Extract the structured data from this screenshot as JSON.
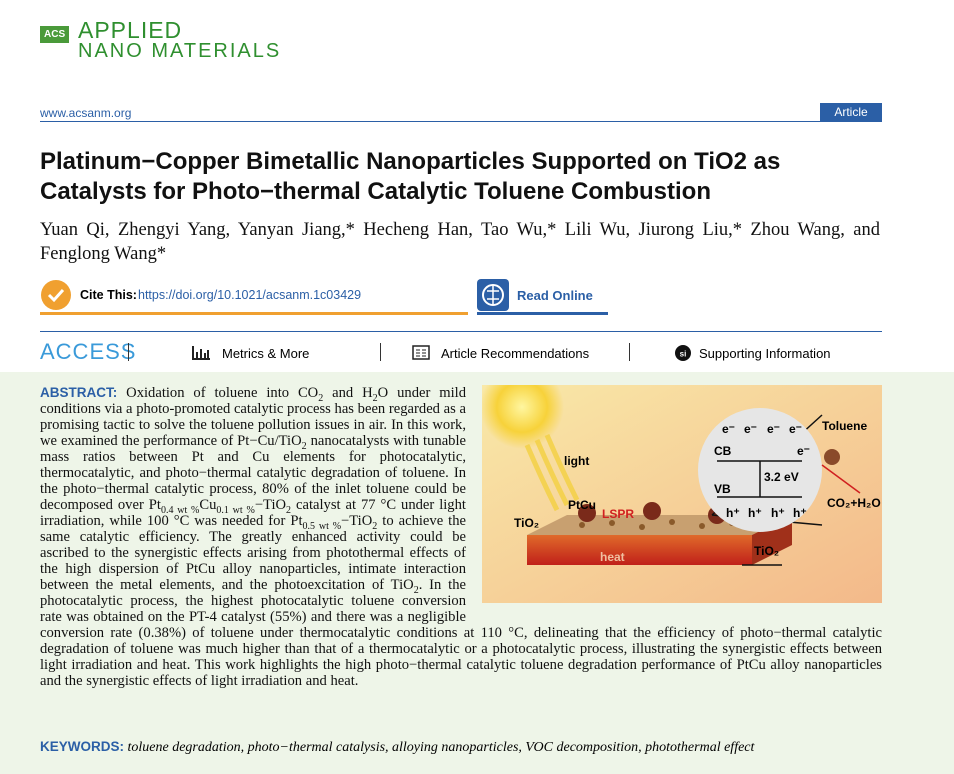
{
  "header": {
    "logo_small": "ACS",
    "logo_top": "APPLIED",
    "logo_bottom": "NANO MATERIALS",
    "url": "www.acsanm.org",
    "article_type": "Article"
  },
  "title": "Platinum−Copper Bimetallic Nanoparticles Supported on TiO2 as Catalysts for Photo−thermal Catalytic Toluene Combustion",
  "authors": "Yuan Qi, Zhengyi Yang, Yanyan Jiang,* Hecheng Han, Tao Wu,* Lili Wu, Jiurong Liu,* Zhou Wang, and Fenglong Wang*",
  "cite": {
    "label": "Cite This:",
    "doi": "https://doi.org/10.1021/acsanm.1c03429",
    "read_online": "Read Online"
  },
  "access": {
    "label": "ACCESS",
    "metrics": "Metrics & More",
    "recommendations": "Article Recommendations",
    "supporting": "Supporting Information"
  },
  "abstract": {
    "label": "ABSTRACT:",
    "parts": [
      "Oxidation of toluene into CO",
      {
        "sub": "2"
      },
      " and H",
      {
        "sub": "2"
      },
      "O under mild conditions via a photo-promoted catalytic process has been regarded as a promising tactic to solve the toluene pollution issues in air. In this work, we examined the performance of Pt−Cu/TiO",
      {
        "sub": "2"
      },
      " nanocatalysts with tunable mass ratios between Pt and Cu elements for photocatalytic, thermocatalytic, and photo−thermal catalytic degradation of toluene. In the photo−thermal catalytic process, 80% of the inlet toluene could be decomposed over Pt",
      {
        "sub": "0.4 wt %"
      },
      "Cu",
      {
        "sub": "0.1 wt %"
      },
      "−TiO",
      {
        "sub": "2"
      },
      " catalyst at 77 °C under light irradiation, while 100 °C was needed for Pt",
      {
        "sub": "0.5 wt %"
      },
      "−TiO",
      {
        "sub": "2"
      },
      " to achieve the same catalytic efficiency. The greatly enhanced activity could be ascribed to the synergistic effects arising from photothermal effects of the high dispersion of PtCu alloy nanoparticles, intimate interaction between the metal elements, and the photoexcitation of TiO",
      {
        "sub": "2"
      },
      ". In the photocatalytic process, the highest photocatalytic toluene conversion rate was obtained on the PT-4 catalyst (55%) and there was a negligible conversion rate (0.38%) of toluene under thermocatalytic conditions at 110 °C, delineating that the efficiency of photo−thermal catalytic degradation of toluene was much higher than that of a thermocatalytic or a photocatalytic process, illustrating the synergistic effects between light irradiation and heat. This work highlights the high photo−thermal catalytic toluene degradation performance of PtCu alloy nanoparticles and the synergistic effects of light irradiation and heat."
    ]
  },
  "figure": {
    "light": "light",
    "ptcu": "PtCu",
    "lspr": "LSPR",
    "tio2_left": "TiO₂",
    "heat": "heat",
    "tio2_right": "TiO₂",
    "electrons": [
      "e⁻",
      "e⁻",
      "e⁻",
      "e⁻"
    ],
    "cb": "CB",
    "cb_electron": "e⁻",
    "gap": "3.2 eV",
    "vb": "VB",
    "holes": [
      "h⁺",
      "h⁺",
      "h⁺",
      "h⁺"
    ],
    "toluene": "Toluene",
    "products": "CO₂+H₂O"
  },
  "keywords": {
    "label": "KEYWORDS:",
    "text": "toluene degradation, photo−thermal catalysis, alloying nanoparticles, VOC decomposition, photothermal effect"
  }
}
